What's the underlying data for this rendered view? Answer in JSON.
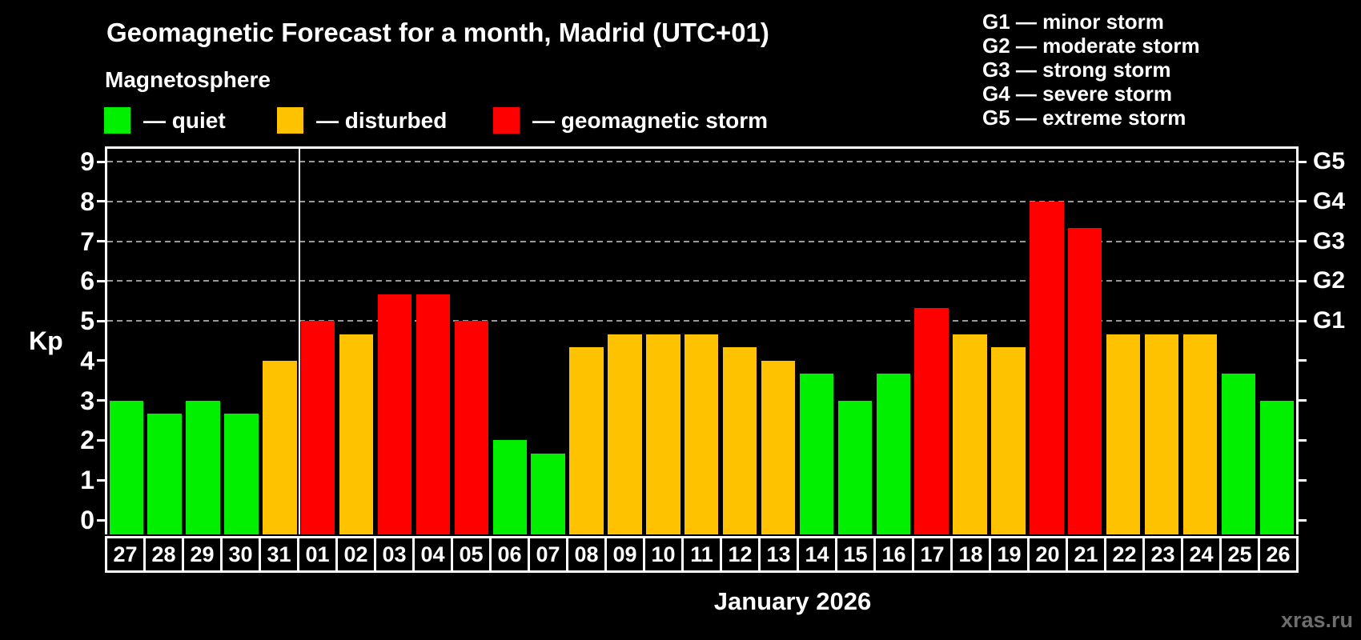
{
  "watermark": "xras.ru",
  "legend": {
    "items": [
      {
        "name": "quiet",
        "label": "— quiet",
        "color": "#00f000"
      },
      {
        "name": "disturbed",
        "label": "— disturbed",
        "color": "#ffc200"
      },
      {
        "name": "geomagnetic-storm",
        "label": "— geomagnetic storm",
        "color": "#ff0000"
      }
    ]
  },
  "storm_scale_legend": {
    "items": [
      {
        "label": "G1 — minor storm"
      },
      {
        "label": "G2 — moderate storm"
      },
      {
        "label": "G3 — strong storm"
      },
      {
        "label": "G4 — severe storm"
      },
      {
        "label": "G5 — extreme storm"
      }
    ]
  },
  "chart_data": {
    "type": "bar",
    "title": "Geomagnetic Forecast for a month, Madrid (UTC+01)",
    "subtitle": "Magnetosphere",
    "xlabel": "January 2026",
    "ylabel": "Kp",
    "ylim": [
      0,
      9.4
    ],
    "grid": "horizontal dashed lines at Kp 5-9 (G1-G5)",
    "legend_position": "top",
    "categories": [
      "27",
      "28",
      "29",
      "30",
      "31",
      "01",
      "02",
      "03",
      "04",
      "05",
      "06",
      "07",
      "08",
      "09",
      "10",
      "11",
      "12",
      "13",
      "14",
      "15",
      "16",
      "17",
      "18",
      "19",
      "20",
      "21",
      "22",
      "23",
      "24",
      "25",
      "26"
    ],
    "values": [
      3,
      2.67,
      3,
      2.67,
      4,
      5,
      4.67,
      5.67,
      5.67,
      5,
      2,
      1.67,
      4.33,
      4.67,
      4.67,
      4.67,
      4.33,
      4,
      3.67,
      3,
      3.67,
      5.33,
      4.67,
      4.33,
      8,
      7.33,
      4.67,
      4.67,
      4.67,
      3.67,
      3
    ],
    "color_rules": {
      "storm_min_kp": 5,
      "disturbed_min_kp": 4
    },
    "colors": {
      "quiet": "#00f000",
      "disturbed": "#ffc200",
      "storm": "#ff0000",
      "grid": "#999999",
      "axis": "#ffffff"
    },
    "left_axis_ticks": [
      "0",
      "1",
      "2",
      "3",
      "4",
      "5",
      "6",
      "7",
      "8",
      "9"
    ],
    "right_axis_labels": [
      {
        "value": 5,
        "label": "G1"
      },
      {
        "value": 6,
        "label": "G2"
      },
      {
        "value": 7,
        "label": "G3"
      },
      {
        "value": 8,
        "label": "G4"
      },
      {
        "value": 9,
        "label": "G5"
      }
    ],
    "gridlines_at": [
      5,
      6,
      7,
      8,
      9
    ],
    "month_separator_after_index": 4
  }
}
